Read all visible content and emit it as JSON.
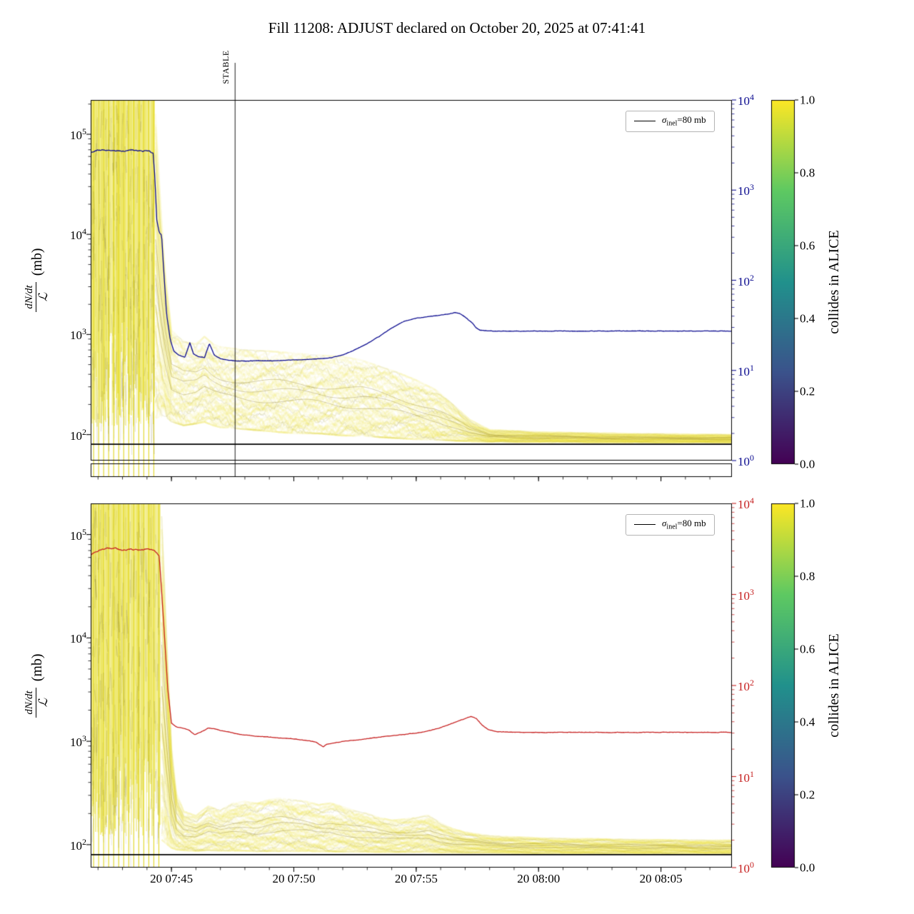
{
  "title": "Fill 11208: ADJUST declared on October 20, 2025 at 07:41:41",
  "annotations": {
    "stable_label": "STABLE",
    "stable_time_min": 47.6
  },
  "legend": {
    "symbol": "σ",
    "subscript": "inel",
    "value": "=80 mb"
  },
  "y_axis": {
    "numerator": "dN/dt",
    "denominator": "ℒ",
    "units": "(mb)",
    "left_tick_exponents": [
      5,
      4,
      3,
      2
    ]
  },
  "right_axis": {
    "tick_exponents": [
      4,
      3,
      2,
      1,
      0
    ],
    "top_color": "#0b0b8f",
    "bottom_color": "#c62020"
  },
  "x_axis": {
    "t_min": 41.7,
    "t_max": 67.9,
    "ticks": [
      {
        "t": 45,
        "label": "20 07:45"
      },
      {
        "t": 50,
        "label": "20 07:50"
      },
      {
        "t": 55,
        "label": "20 07:55"
      },
      {
        "t": 60,
        "label": "20 08:00"
      },
      {
        "t": 65,
        "label": "20 08:05"
      }
    ]
  },
  "colorbar": {
    "label": "collides in ALICE",
    "ticks": [
      "1.0",
      "0.8",
      "0.6",
      "0.4",
      "0.2",
      "0.0"
    ],
    "colormap_stops_top_to_bottom": [
      "#fde725",
      "#5ec962",
      "#21918c",
      "#3b528b",
      "#440154"
    ]
  },
  "colors": {
    "band_yellow": "#e8de1c",
    "band_dark": "#786822",
    "sigma_line": "#000000",
    "frame": "#000000"
  },
  "chart_data": [
    {
      "name": "top-panel",
      "type": "line",
      "line_color": "#0b0b8f",
      "ylim": [
        55,
        220000
      ],
      "sigma_mb": 80,
      "chaos_end_min": 44.3,
      "main_line": [
        [
          41.7,
          66000
        ],
        [
          42,
          70000
        ],
        [
          42.3,
          68500
        ],
        [
          42.6,
          69500
        ],
        [
          43,
          68000
        ],
        [
          43.4,
          69000
        ],
        [
          43.8,
          67500
        ],
        [
          44.1,
          68000
        ],
        [
          44.25,
          64000
        ],
        [
          44.32,
          38000
        ],
        [
          44.4,
          14000
        ],
        [
          44.5,
          10500
        ],
        [
          44.6,
          9800
        ],
        [
          44.68,
          4500
        ],
        [
          44.8,
          1600
        ],
        [
          44.95,
          900
        ],
        [
          45.1,
          680
        ],
        [
          45.3,
          620
        ],
        [
          45.55,
          590
        ],
        [
          45.75,
          830
        ],
        [
          45.9,
          640
        ],
        [
          46.1,
          600
        ],
        [
          46.35,
          590
        ],
        [
          46.55,
          810
        ],
        [
          46.75,
          620
        ],
        [
          47,
          575
        ],
        [
          47.3,
          555
        ],
        [
          47.6,
          545
        ],
        [
          48,
          540
        ],
        [
          48.5,
          548
        ],
        [
          49,
          545
        ],
        [
          49.5,
          552
        ],
        [
          50,
          556
        ],
        [
          50.5,
          562
        ],
        [
          51,
          572
        ],
        [
          51.5,
          585
        ],
        [
          52,
          625
        ],
        [
          52.5,
          705
        ],
        [
          53,
          810
        ],
        [
          53.5,
          960
        ],
        [
          54,
          1160
        ],
        [
          54.5,
          1360
        ],
        [
          55,
          1460
        ],
        [
          55.5,
          1510
        ],
        [
          56,
          1560
        ],
        [
          56.3,
          1610
        ],
        [
          56.6,
          1660
        ],
        [
          56.8,
          1610
        ],
        [
          57,
          1500
        ],
        [
          57.15,
          1390
        ],
        [
          57.3,
          1300
        ],
        [
          57.45,
          1160
        ],
        [
          57.6,
          1105
        ],
        [
          57.9,
          1085
        ],
        [
          58.5,
          1080
        ],
        [
          59.5,
          1082
        ],
        [
          61,
          1080
        ],
        [
          63,
          1083
        ],
        [
          65,
          1080
        ],
        [
          67.9,
          1082
        ]
      ],
      "band": [
        [
          44.35,
          130,
          160000
        ],
        [
          44.55,
          140,
          20000
        ],
        [
          44.75,
          145,
          4000
        ],
        [
          45,
          130,
          1100
        ],
        [
          45.5,
          120,
          850
        ],
        [
          46,
          125,
          800
        ],
        [
          46.35,
          130,
          950
        ],
        [
          46.7,
          120,
          800
        ],
        [
          47,
          115,
          750
        ],
        [
          48,
          110,
          700
        ],
        [
          49,
          105,
          680
        ],
        [
          50,
          100,
          650
        ],
        [
          51,
          100,
          620
        ],
        [
          52,
          95,
          600
        ],
        [
          52.8,
          95,
          550
        ],
        [
          53.5,
          92,
          480
        ],
        [
          54.2,
          90,
          420
        ],
        [
          55,
          88,
          350
        ],
        [
          55.8,
          87,
          280
        ],
        [
          56.5,
          86,
          200
        ],
        [
          57.2,
          85,
          140
        ],
        [
          58,
          84,
          112
        ],
        [
          60,
          84,
          106
        ],
        [
          64,
          83,
          102
        ],
        [
          67.9,
          83,
          100
        ]
      ]
    },
    {
      "name": "bottom-panel",
      "type": "line",
      "line_color": "#c62020",
      "ylim": [
        60,
        200000
      ],
      "sigma_mb": 80,
      "chaos_end_min": 44.55,
      "main_line": [
        [
          41.7,
          64000
        ],
        [
          42,
          69000
        ],
        [
          42.3,
          73000
        ],
        [
          42.7,
          74000
        ],
        [
          43,
          70500
        ],
        [
          43.3,
          72500
        ],
        [
          43.7,
          71000
        ],
        [
          44,
          72000
        ],
        [
          44.3,
          70000
        ],
        [
          44.5,
          62000
        ],
        [
          44.6,
          28000
        ],
        [
          44.72,
          10000
        ],
        [
          44.85,
          3200
        ],
        [
          45,
          1500
        ],
        [
          45.2,
          1380
        ],
        [
          45.45,
          1340
        ],
        [
          45.7,
          1290
        ],
        [
          45.95,
          1160
        ],
        [
          46.2,
          1230
        ],
        [
          46.5,
          1340
        ],
        [
          46.8,
          1310
        ],
        [
          47.1,
          1260
        ],
        [
          47.5,
          1205
        ],
        [
          47.9,
          1155
        ],
        [
          48.4,
          1125
        ],
        [
          48.9,
          1102
        ],
        [
          49.4,
          1082
        ],
        [
          49.9,
          1062
        ],
        [
          50.4,
          1025
        ],
        [
          50.9,
          985
        ],
        [
          51.2,
          880
        ],
        [
          51.35,
          940
        ],
        [
          51.6,
          958
        ],
        [
          52,
          1002
        ],
        [
          52.5,
          1022
        ],
        [
          53,
          1062
        ],
        [
          53.5,
          1102
        ],
        [
          54,
          1132
        ],
        [
          54.5,
          1162
        ],
        [
          55,
          1202
        ],
        [
          55.5,
          1262
        ],
        [
          56,
          1352
        ],
        [
          56.5,
          1502
        ],
        [
          57,
          1652
        ],
        [
          57.25,
          1742
        ],
        [
          57.45,
          1662
        ],
        [
          57.7,
          1432
        ],
        [
          57.95,
          1292
        ],
        [
          58.3,
          1242
        ],
        [
          58.8,
          1225
        ],
        [
          59.5,
          1218
        ],
        [
          61,
          1222
        ],
        [
          63,
          1216
        ],
        [
          65,
          1221
        ],
        [
          67.9,
          1220
        ]
      ],
      "band": [
        [
          44.6,
          100,
          150000
        ],
        [
          44.8,
          95,
          10000
        ],
        [
          45,
          90,
          900
        ],
        [
          45.2,
          88,
          320
        ],
        [
          45.5,
          87,
          210
        ],
        [
          46,
          86,
          190
        ],
        [
          46.5,
          87,
          235
        ],
        [
          47,
          86,
          215
        ],
        [
          47.5,
          86,
          250
        ],
        [
          48,
          86,
          262
        ],
        [
          48.5,
          85,
          250
        ],
        [
          49,
          85,
          272
        ],
        [
          49.5,
          85,
          282
        ],
        [
          50,
          85,
          270
        ],
        [
          50.5,
          85,
          262
        ],
        [
          51,
          85,
          242
        ],
        [
          51.5,
          85,
          252
        ],
        [
          52,
          84,
          232
        ],
        [
          52.5,
          84,
          212
        ],
        [
          53,
          84,
          200
        ],
        [
          53.5,
          84,
          182
        ],
        [
          54,
          84,
          172
        ],
        [
          54.5,
          84,
          176
        ],
        [
          55,
          84,
          182
        ],
        [
          55.5,
          84,
          192
        ],
        [
          56,
          83,
          162
        ],
        [
          56.5,
          83,
          142
        ],
        [
          57,
          83,
          132
        ],
        [
          58,
          83,
          122
        ],
        [
          60,
          82,
          116
        ],
        [
          64,
          82,
          112
        ],
        [
          67.9,
          82,
          110
        ]
      ]
    }
  ]
}
